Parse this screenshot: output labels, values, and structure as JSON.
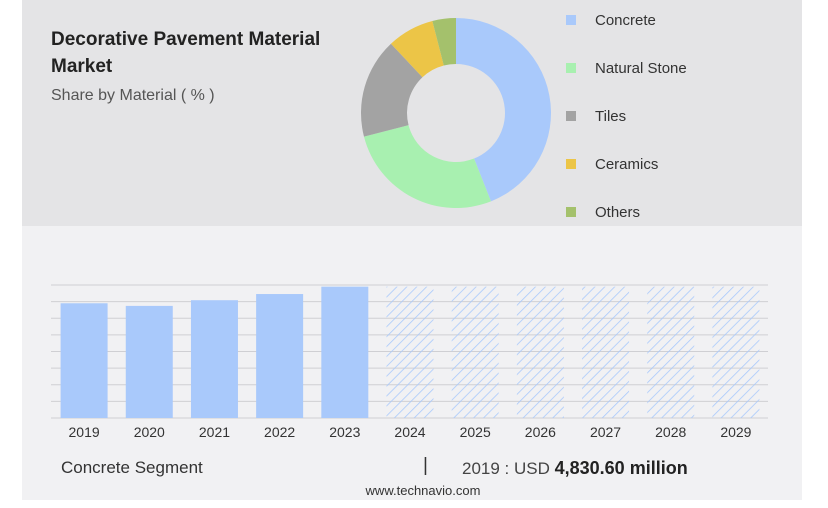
{
  "header": {
    "title": "Decorative Pavement Material Market",
    "subtitle": "Share by Material ( % )"
  },
  "colors": {
    "concrete": "#a9c9fb",
    "natural_stone": "#a8f0b0",
    "tiles": "#a3a3a3",
    "ceramics": "#ecc547",
    "others": "#a4c16c",
    "forecast_hatch": "#a9c9fb",
    "grid": "#cfcfd3"
  },
  "chart_data": [
    {
      "type": "pie",
      "style": "donut",
      "categories": [
        "Concrete",
        "Natural Stone",
        "Tiles",
        "Ceramics",
        "Others"
      ],
      "values": [
        44,
        27,
        17,
        8,
        4
      ],
      "legend_placement": "right"
    },
    {
      "type": "bar",
      "categories": [
        "2019",
        "2020",
        "2021",
        "2022",
        "2023",
        "2024",
        "2025",
        "2026",
        "2027",
        "2028",
        "2029"
      ],
      "values": [
        4830.6,
        4720,
        4960,
        5220,
        5530,
        5530,
        5530,
        5530,
        5530,
        5530,
        5530
      ],
      "forecast": [
        false,
        false,
        false,
        false,
        false,
        true,
        true,
        true,
        true,
        true,
        true
      ],
      "ylim": [
        0,
        5600
      ],
      "grid": true,
      "xlabel": "",
      "ylabel": ""
    }
  ],
  "footer": {
    "segment_label": "Concrete Segment",
    "divider": "|",
    "year_prefix": "2019 : USD",
    "value": "4,830.60 million",
    "url": "www.technavio.com"
  }
}
